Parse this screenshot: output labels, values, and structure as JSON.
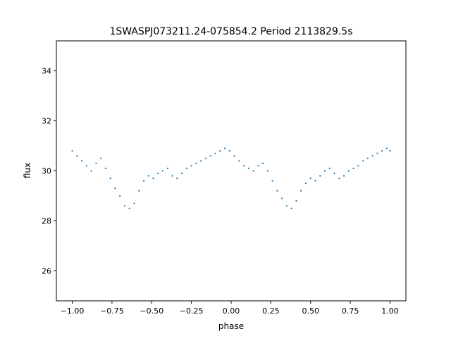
{
  "chart_data": {
    "type": "scatter",
    "title": "1SWASPJ073211.24-075854.2 Period 2113829.5s",
    "xlabel": "phase",
    "ylabel": "flux",
    "xlim": [
      -1.1,
      1.1
    ],
    "ylim": [
      24.8,
      35.2
    ],
    "xticks": [
      -1.0,
      -0.75,
      -0.5,
      -0.25,
      0.0,
      0.25,
      0.5,
      0.75,
      1.0
    ],
    "xtick_labels": [
      "−1.00",
      "−0.75",
      "−0.50",
      "−0.25",
      "0.00",
      "0.25",
      "0.50",
      "0.75",
      "1.00"
    ],
    "yticks": [
      26,
      28,
      30,
      32,
      34
    ],
    "ytick_labels": [
      "26",
      "28",
      "30",
      "32",
      "34"
    ],
    "grid": false,
    "legend": "none",
    "color": "#1f77b4",
    "series": [
      {
        "x": [
          -1.0,
          -0.97,
          -0.94,
          -0.91,
          -0.88,
          -0.85,
          -0.82,
          -0.79,
          -0.76,
          -0.73,
          -0.7,
          -0.67,
          -0.64,
          -0.61,
          -0.58,
          -0.55,
          -0.52,
          -0.49,
          -0.46,
          -0.43,
          -0.4,
          -0.37,
          -0.34,
          -0.31,
          -0.28,
          -0.25,
          -0.22,
          -0.19,
          -0.16,
          -0.13,
          -0.1,
          -0.07,
          -0.04,
          -0.01,
          0.02,
          0.05,
          0.08,
          0.11,
          0.14,
          0.17,
          0.2,
          0.23,
          0.26,
          0.29,
          0.32,
          0.35,
          0.38,
          0.41,
          0.44,
          0.47,
          0.5,
          0.53,
          0.56,
          0.59,
          0.62,
          0.65,
          0.68,
          0.71,
          0.74,
          0.77,
          0.8,
          0.83,
          0.86,
          0.89,
          0.92,
          0.95,
          0.98,
          1.0
        ],
        "y": [
          30.8,
          30.6,
          30.4,
          30.2,
          30.0,
          30.3,
          30.5,
          30.1,
          29.7,
          29.3,
          29.0,
          28.6,
          28.5,
          28.7,
          29.2,
          29.6,
          29.8,
          29.7,
          29.9,
          30.0,
          30.1,
          29.8,
          29.7,
          29.9,
          30.1,
          30.2,
          30.3,
          30.4,
          30.5,
          30.6,
          30.7,
          30.8,
          30.9,
          30.8,
          30.6,
          30.4,
          30.2,
          30.1,
          30.0,
          30.2,
          30.3,
          30.0,
          29.6,
          29.2,
          28.9,
          28.6,
          28.5,
          28.8,
          29.2,
          29.5,
          29.7,
          29.6,
          29.8,
          30.0,
          30.1,
          29.9,
          29.7,
          29.8,
          30.0,
          30.1,
          30.2,
          30.4,
          30.5,
          30.6,
          30.7,
          30.8,
          30.9,
          30.8
        ]
      }
    ]
  }
}
